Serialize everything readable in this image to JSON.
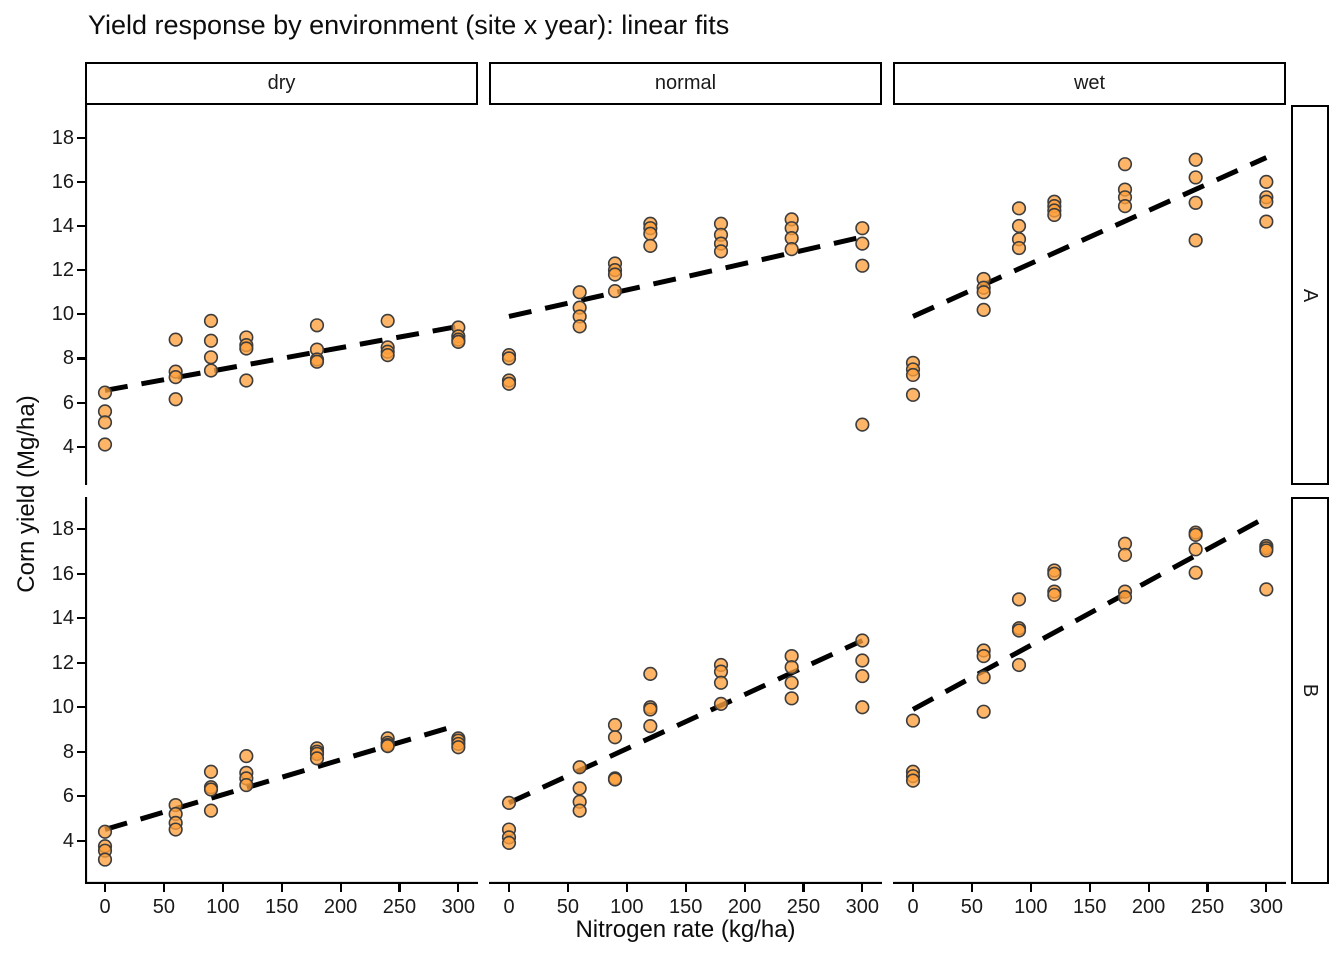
{
  "title": "Yield response by environment (site x year): linear fits",
  "style": {
    "point_fill": "#FFA03C",
    "point_fill_opacity": 0.78,
    "point_stroke": "#3d3d3d",
    "fit_line_color": "#000000",
    "axis_line_color": "#000000",
    "background": "#ffffff"
  },
  "chart_data": {
    "type": "scatter",
    "title": "Yield response by environment (site x year): linear fits",
    "xlabel": "Nitrogen rate (kg/ha)",
    "ylabel": "Corn yield (Mg/ha)",
    "facet_cols": [
      "dry",
      "normal",
      "wet"
    ],
    "facet_rows": [
      "A",
      "B"
    ],
    "x_ticks": [
      0,
      50,
      100,
      150,
      200,
      250,
      300
    ],
    "y_ticks": [
      4,
      6,
      8,
      10,
      12,
      14,
      16,
      18
    ],
    "xlim": [
      -17,
      317
    ],
    "ylim_top_value": 18,
    "grid": false,
    "legend": "none",
    "fit_style": "dashed linear",
    "panels": [
      {
        "col": "dry",
        "row": "A",
        "points": [
          [
            0,
            6.45
          ],
          [
            0,
            5.6
          ],
          [
            0,
            5.1
          ],
          [
            0,
            4.1
          ],
          [
            60,
            8.85
          ],
          [
            60,
            7.4
          ],
          [
            60,
            7.15
          ],
          [
            60,
            6.15
          ],
          [
            90,
            9.7
          ],
          [
            90,
            8.8
          ],
          [
            90,
            8.05
          ],
          [
            90,
            7.45
          ],
          [
            120,
            8.95
          ],
          [
            120,
            8.6
          ],
          [
            120,
            8.45
          ],
          [
            120,
            7.0
          ],
          [
            180,
            9.5
          ],
          [
            180,
            8.4
          ],
          [
            180,
            7.95
          ],
          [
            180,
            7.85
          ],
          [
            240,
            9.7
          ],
          [
            240,
            8.5
          ],
          [
            240,
            8.3
          ],
          [
            240,
            8.15
          ],
          [
            300,
            9.4
          ],
          [
            300,
            9.0
          ],
          [
            300,
            8.85
          ],
          [
            300,
            8.75
          ]
        ],
        "fit": [
          [
            0,
            6.55
          ],
          [
            300,
            9.45
          ]
        ]
      },
      {
        "col": "normal",
        "row": "A",
        "points": [
          [
            0,
            8.15
          ],
          [
            0,
            8.0
          ],
          [
            0,
            7.0
          ],
          [
            0,
            6.85
          ],
          [
            60,
            11.0
          ],
          [
            60,
            10.3
          ],
          [
            60,
            9.9
          ],
          [
            60,
            9.45
          ],
          [
            90,
            12.3
          ],
          [
            90,
            12.0
          ],
          [
            90,
            11.8
          ],
          [
            90,
            11.05
          ],
          [
            120,
            14.1
          ],
          [
            120,
            13.9
          ],
          [
            120,
            13.65
          ],
          [
            120,
            13.1
          ],
          [
            180,
            14.1
          ],
          [
            180,
            13.6
          ],
          [
            180,
            13.2
          ],
          [
            180,
            12.85
          ],
          [
            240,
            14.3
          ],
          [
            240,
            13.9
          ],
          [
            240,
            13.45
          ],
          [
            240,
            12.95
          ],
          [
            300,
            13.9
          ],
          [
            300,
            13.2
          ],
          [
            300,
            12.2
          ],
          [
            300,
            5.0
          ]
        ],
        "fit": [
          [
            0,
            9.9
          ],
          [
            300,
            13.5
          ]
        ]
      },
      {
        "col": "wet",
        "row": "A",
        "points": [
          [
            0,
            7.8
          ],
          [
            0,
            7.5
          ],
          [
            0,
            7.25
          ],
          [
            0,
            6.35
          ],
          [
            60,
            11.6
          ],
          [
            60,
            11.2
          ],
          [
            60,
            11.0
          ],
          [
            60,
            10.2
          ],
          [
            90,
            14.8
          ],
          [
            90,
            14.0
          ],
          [
            90,
            13.4
          ],
          [
            90,
            13.0
          ],
          [
            120,
            15.1
          ],
          [
            120,
            14.9
          ],
          [
            120,
            14.7
          ],
          [
            120,
            14.5
          ],
          [
            180,
            16.8
          ],
          [
            180,
            15.65
          ],
          [
            180,
            15.3
          ],
          [
            180,
            14.9
          ],
          [
            240,
            17.0
          ],
          [
            240,
            16.2
          ],
          [
            240,
            15.05
          ],
          [
            240,
            13.35
          ],
          [
            300,
            16.0
          ],
          [
            300,
            15.3
          ],
          [
            300,
            15.1
          ],
          [
            300,
            14.2
          ]
        ],
        "fit": [
          [
            0,
            9.9
          ],
          [
            300,
            17.1
          ]
        ]
      },
      {
        "col": "dry",
        "row": "B",
        "points": [
          [
            0,
            4.4
          ],
          [
            0,
            3.75
          ],
          [
            0,
            3.55
          ],
          [
            0,
            3.15
          ],
          [
            60,
            5.6
          ],
          [
            60,
            5.2
          ],
          [
            60,
            4.8
          ],
          [
            60,
            4.5
          ],
          [
            90,
            7.1
          ],
          [
            90,
            6.4
          ],
          [
            90,
            6.3
          ],
          [
            90,
            5.35
          ],
          [
            120,
            7.8
          ],
          [
            120,
            7.05
          ],
          [
            120,
            6.8
          ],
          [
            120,
            6.5
          ],
          [
            180,
            8.15
          ],
          [
            180,
            8.0
          ],
          [
            180,
            7.9
          ],
          [
            180,
            7.7
          ],
          [
            240,
            8.6
          ],
          [
            240,
            8.4
          ],
          [
            240,
            8.3
          ],
          [
            240,
            8.25
          ],
          [
            300,
            8.6
          ],
          [
            300,
            8.5
          ],
          [
            300,
            8.35
          ],
          [
            300,
            8.2
          ]
        ],
        "fit": [
          [
            0,
            4.5
          ],
          [
            300,
            9.2
          ]
        ]
      },
      {
        "col": "normal",
        "row": "B",
        "points": [
          [
            0,
            5.7
          ],
          [
            0,
            4.5
          ],
          [
            0,
            4.15
          ],
          [
            0,
            3.9
          ],
          [
            60,
            7.3
          ],
          [
            60,
            6.35
          ],
          [
            60,
            5.75
          ],
          [
            60,
            5.35
          ],
          [
            90,
            9.2
          ],
          [
            90,
            8.65
          ],
          [
            90,
            6.8
          ],
          [
            90,
            6.75
          ],
          [
            120,
            11.5
          ],
          [
            120,
            10.0
          ],
          [
            120,
            9.9
          ],
          [
            120,
            9.15
          ],
          [
            180,
            11.9
          ],
          [
            180,
            11.6
          ],
          [
            180,
            11.1
          ],
          [
            180,
            10.15
          ],
          [
            240,
            12.3
          ],
          [
            240,
            11.8
          ],
          [
            240,
            11.1
          ],
          [
            240,
            10.4
          ],
          [
            300,
            13.0
          ],
          [
            300,
            12.1
          ],
          [
            300,
            11.4
          ],
          [
            300,
            10.0
          ]
        ],
        "fit": [
          [
            0,
            5.7
          ],
          [
            300,
            13.0
          ]
        ]
      },
      {
        "col": "wet",
        "row": "B",
        "points": [
          [
            0,
            9.4
          ],
          [
            0,
            7.1
          ],
          [
            0,
            6.9
          ],
          [
            0,
            6.7
          ],
          [
            60,
            12.55
          ],
          [
            60,
            12.3
          ],
          [
            60,
            11.35
          ],
          [
            60,
            9.8
          ],
          [
            90,
            14.85
          ],
          [
            90,
            13.55
          ],
          [
            90,
            13.45
          ],
          [
            90,
            11.9
          ],
          [
            120,
            16.15
          ],
          [
            120,
            16.0
          ],
          [
            120,
            15.2
          ],
          [
            120,
            15.05
          ],
          [
            180,
            17.35
          ],
          [
            180,
            16.85
          ],
          [
            180,
            15.2
          ],
          [
            180,
            14.95
          ],
          [
            240,
            17.85
          ],
          [
            240,
            17.75
          ],
          [
            240,
            17.1
          ],
          [
            240,
            16.05
          ],
          [
            300,
            17.25
          ],
          [
            300,
            17.15
          ],
          [
            300,
            17.05
          ],
          [
            300,
            15.3
          ]
        ],
        "fit": [
          [
            0,
            9.9
          ],
          [
            300,
            18.55
          ]
        ]
      }
    ]
  }
}
